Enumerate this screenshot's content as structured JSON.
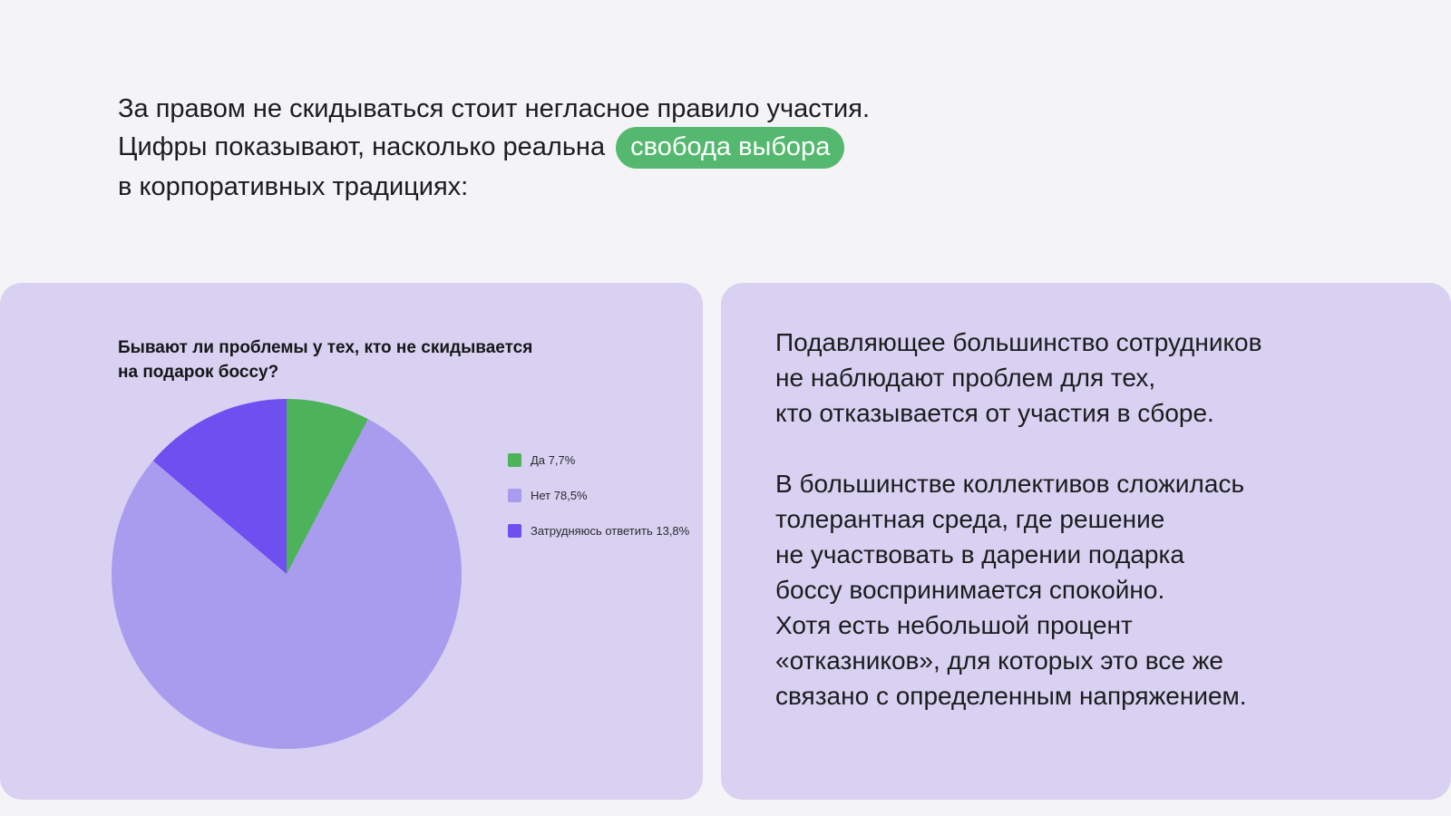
{
  "colors": {
    "page_bg": "#f4f3f5",
    "card_bg": "#d8d1f1",
    "highlight": "#54b96f",
    "text": "#1c1c1e"
  },
  "header": {
    "line1": "За правом не скидываться стоит негласное правило участия.",
    "line2_before": "Цифры показывают, насколько реальна",
    "highlight": "свобода выбора",
    "line3": "в корпоративных традициях:"
  },
  "chart_data": {
    "type": "pie",
    "title": "Бывают ли проблемы у тех, кто не скидывается\nна подарок боссу?",
    "slices": [
      {
        "label": "Да",
        "value": 7.7,
        "color": "#4cb35b",
        "legend": "Да 7,7%"
      },
      {
        "label": "Нет",
        "value": 78.5,
        "color": "#a99cef",
        "legend": "Нет 78,5%"
      },
      {
        "label": "Затрудняюсь ответить",
        "value": 13.8,
        "color": "#6f4ff0",
        "legend": "Затрудняюсь ответить 13,8%"
      }
    ],
    "start_angle_deg": 0,
    "direction": "clockwise",
    "legend_position": "right"
  },
  "insight_card": {
    "paragraph1": "Подавляющее большинство сотрудников\nне наблюдают проблем для тех,\nкто отказывается от участия в сборе.",
    "paragraph2": "В большинстве коллективов сложилась\nтолерантная среда, где решение\nне участвовать в дарении подарка\nбоссу воспринимается спокойно.\nХотя есть небольшой процент\n«отказников», для которых это все же\nсвязано с определенным напряжением."
  }
}
